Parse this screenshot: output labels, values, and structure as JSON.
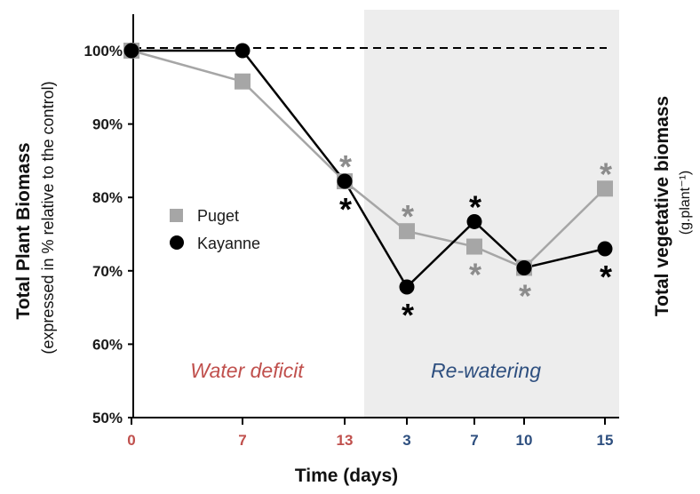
{
  "chart_data": {
    "type": "line",
    "ylabel": "Total Plant Biomass",
    "ylabel_sub": "(expressed in % relative to the control)",
    "y2label": "Total vegetative biomass",
    "y2label_unit": "(g.plant⁻¹)",
    "xlabel": "Time (days)",
    "ylim": [
      50,
      100
    ],
    "yticks": [
      "50%",
      "60%",
      "70%",
      "80%",
      "90%",
      "100%"
    ],
    "ytick_values": [
      50,
      60,
      70,
      80,
      90,
      100
    ],
    "x_positions": [
      0,
      1,
      2,
      3,
      4,
      5,
      6
    ],
    "x_tick_labels": [
      "0",
      "7",
      "13",
      "3",
      "7",
      "10",
      "15"
    ],
    "x_tick_colors": [
      "#c0504d",
      "#c0504d",
      "#c0504d",
      "#2e4f7f",
      "#2e4f7f",
      "#2e4f7f",
      "#2e4f7f"
    ],
    "reference_line": 100,
    "regions": [
      {
        "label": "Water deficit",
        "shaded": false,
        "color": "#c0504d"
      },
      {
        "label": "Re-watering",
        "shaded": true,
        "color": "#2e4f7f"
      }
    ],
    "series": [
      {
        "name": "Puget",
        "color": "#a6a6a6",
        "marker": "square",
        "values": [
          100,
          95.8,
          82.2,
          75.4,
          73.3,
          70.4,
          81.2
        ]
      },
      {
        "name": "Kayanne",
        "color": "#000000",
        "marker": "circle",
        "values": [
          100,
          100,
          82.2,
          67.8,
          76.7,
          70.4,
          73.0
        ]
      }
    ],
    "significance": [
      {
        "series": "Puget",
        "symbol": "*",
        "color": "#8c8c8c",
        "x_index": 2,
        "position": "above"
      },
      {
        "series": "Kayanne",
        "symbol": "*",
        "color": "#000000",
        "x_index": 2,
        "position": "below"
      },
      {
        "series": "Puget",
        "symbol": "*",
        "color": "#8c8c8c",
        "x_index": 3,
        "position": "above"
      },
      {
        "series": "Kayanne",
        "symbol": "*",
        "color": "#000000",
        "x_index": 3,
        "position": "below"
      },
      {
        "series": "Kayanne",
        "symbol": "*",
        "color": "#000000",
        "x_index": 4,
        "position": "above"
      },
      {
        "series": "Puget",
        "symbol": "*",
        "color": "#8c8c8c",
        "x_index": 4,
        "position": "below"
      },
      {
        "series": "Puget",
        "symbol": "*",
        "color": "#8c8c8c",
        "x_index": 5,
        "position": "below"
      },
      {
        "series": "Puget",
        "symbol": "*",
        "color": "#8c8c8c",
        "x_index": 6,
        "position": "above"
      },
      {
        "series": "Kayanne",
        "symbol": "*",
        "color": "#000000",
        "x_index": 6,
        "position": "below"
      }
    ],
    "legend": {
      "placement": "center-left"
    },
    "grid": false
  }
}
